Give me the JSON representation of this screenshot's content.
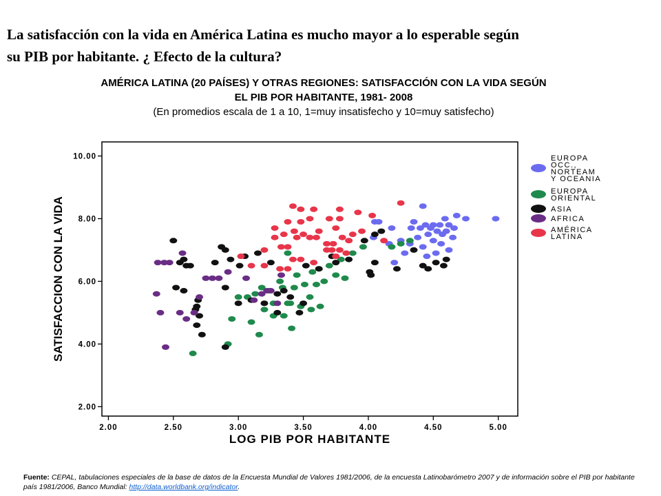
{
  "slide": {
    "title_line1": "La satisfacción con la vida en América Latina es mucho mayor a lo esperable según",
    "title_line2": "su PIB por habitante. ¿ Efecto de la cultura?"
  },
  "chart_heading": {
    "line1": "AMÉRICA LATINA (20 PAÍSES) Y OTRAS REGIONES: SATISFACCIÓN CON LA VIDA SEGÚN",
    "line2": "EL PIB POR HABITANTE, 1981- 2008",
    "line3": "(En promedios escala de 1 a 10, 1=muy insatisfecho y 10=muy satisfecho)"
  },
  "footer": {
    "label": "Fuente:",
    "text": " CEPAL, tabulaciones especiales de la base de datos de la Encuesta Mundial de Valores 1981/2006, de la encuesta Latinobarómetro 2007 y de información sobre el PIB por habitante país 1981/2006, Banco Mundial: ",
    "link": "http://data.worldbank.org/indicator",
    "end": "."
  },
  "chart_data": {
    "type": "scatter",
    "xlabel": "LOG PIB POR HABITANTE",
    "ylabel": "SATISFACCION CON LA VIDA",
    "xlim": [
      1.95,
      5.15
    ],
    "ylim": [
      1.7,
      10.45
    ],
    "x_ticks": [
      "2.00",
      "2.50",
      "3.00",
      "3.50",
      "4.00",
      "4.50",
      "5.00"
    ],
    "y_ticks": [
      "2.00",
      "4.00",
      "6.00",
      "8.00",
      "10.00"
    ],
    "legend_position": "right",
    "series": [
      {
        "name": [
          "EUROPA",
          "OCC.,",
          "NORTEAM",
          "Y OCEANIA"
        ],
        "color": "#6b6bf0",
        "points": [
          [
            4.42,
            8.4
          ],
          [
            4.59,
            8.0
          ],
          [
            4.68,
            8.1
          ],
          [
            4.75,
            8.0
          ],
          [
            4.98,
            8.0
          ],
          [
            4.35,
            7.9
          ],
          [
            4.44,
            7.8
          ],
          [
            4.5,
            7.8
          ],
          [
            4.55,
            7.8
          ],
          [
            4.62,
            7.8
          ],
          [
            4.66,
            7.7
          ],
          [
            4.33,
            7.7
          ],
          [
            4.4,
            7.7
          ],
          [
            4.48,
            7.7
          ],
          [
            4.53,
            7.6
          ],
          [
            4.6,
            7.6
          ],
          [
            4.46,
            7.5
          ],
          [
            4.57,
            7.5
          ],
          [
            4.65,
            7.4
          ],
          [
            4.38,
            7.4
          ],
          [
            4.5,
            7.3
          ],
          [
            4.56,
            7.2
          ],
          [
            4.32,
            7.2
          ],
          [
            4.25,
            7.3
          ],
          [
            4.42,
            7.1
          ],
          [
            4.62,
            7.0
          ],
          [
            4.52,
            6.9
          ],
          [
            4.28,
            6.9
          ],
          [
            4.45,
            6.8
          ],
          [
            4.18,
            7.7
          ],
          [
            4.16,
            7.2
          ],
          [
            4.2,
            6.6
          ],
          [
            4.05,
            7.9
          ],
          [
            4.08,
            7.9
          ],
          [
            4.04,
            7.4
          ]
        ]
      },
      {
        "name": [
          "EUROPA",
          "ORIENTAL"
        ],
        "color": "#1f8a4c",
        "points": [
          [
            2.65,
            3.7
          ],
          [
            2.92,
            4.0
          ],
          [
            2.95,
            4.8
          ],
          [
            3.1,
            4.7
          ],
          [
            3.16,
            4.3
          ],
          [
            3.27,
            4.9
          ],
          [
            3.35,
            4.9
          ],
          [
            3.41,
            4.5
          ],
          [
            3.2,
            5.1
          ],
          [
            3.27,
            5.3
          ],
          [
            3.38,
            5.3
          ],
          [
            3.48,
            5.2
          ],
          [
            3.56,
            5.1
          ],
          [
            3.63,
            5.2
          ],
          [
            3.0,
            5.5
          ],
          [
            3.07,
            5.5
          ],
          [
            3.13,
            5.6
          ],
          [
            3.24,
            5.7
          ],
          [
            3.34,
            5.8
          ],
          [
            3.43,
            5.8
          ],
          [
            3.51,
            5.9
          ],
          [
            3.6,
            5.9
          ],
          [
            3.18,
            5.8
          ],
          [
            3.32,
            6.0
          ],
          [
            3.45,
            6.2
          ],
          [
            3.57,
            6.3
          ],
          [
            3.66,
            6.0
          ],
          [
            3.75,
            6.2
          ],
          [
            3.82,
            6.1
          ],
          [
            3.7,
            6.5
          ],
          [
            3.79,
            6.7
          ],
          [
            3.88,
            6.9
          ],
          [
            3.96,
            7.1
          ],
          [
            4.18,
            7.1
          ],
          [
            4.25,
            7.2
          ],
          [
            4.32,
            7.3
          ],
          [
            3.38,
            6.9
          ],
          [
            3.62,
            6.4
          ],
          [
            3.4,
            5.3
          ],
          [
            3.55,
            5.5
          ]
        ]
      },
      {
        "name": [
          "ASIA"
        ],
        "color": "#111111",
        "points": [
          [
            2.5,
            7.3
          ],
          [
            2.58,
            6.7
          ],
          [
            2.6,
            6.5
          ],
          [
            2.63,
            6.5
          ],
          [
            2.55,
            6.6
          ],
          [
            2.82,
            6.6
          ],
          [
            2.87,
            7.1
          ],
          [
            2.9,
            7.0
          ],
          [
            2.94,
            6.7
          ],
          [
            3.01,
            6.5
          ],
          [
            3.05,
            6.8
          ],
          [
            2.52,
            5.8
          ],
          [
            2.58,
            5.7
          ],
          [
            2.68,
            5.2
          ],
          [
            2.7,
            4.9
          ],
          [
            2.72,
            4.3
          ],
          [
            2.68,
            4.6
          ],
          [
            2.67,
            5.1
          ],
          [
            2.69,
            5.4
          ],
          [
            2.9,
            5.8
          ],
          [
            3.0,
            5.3
          ],
          [
            3.1,
            5.4
          ],
          [
            3.2,
            5.3
          ],
          [
            3.3,
            5.0
          ],
          [
            3.3,
            5.6
          ],
          [
            3.35,
            5.7
          ],
          [
            3.4,
            5.5
          ],
          [
            3.47,
            5.0
          ],
          [
            3.5,
            5.3
          ],
          [
            3.52,
            6.5
          ],
          [
            3.62,
            6.4
          ],
          [
            3.72,
            6.8
          ],
          [
            3.75,
            6.6
          ],
          [
            3.85,
            6.7
          ],
          [
            3.97,
            7.3
          ],
          [
            4.02,
            6.2
          ],
          [
            4.05,
            6.6
          ],
          [
            4.01,
            6.3
          ],
          [
            4.22,
            6.4
          ],
          [
            4.42,
            6.5
          ],
          [
            4.46,
            6.4
          ],
          [
            4.52,
            6.6
          ],
          [
            4.58,
            6.5
          ],
          [
            4.6,
            6.7
          ],
          [
            4.35,
            7.0
          ],
          [
            4.05,
            7.5
          ],
          [
            4.1,
            7.6
          ],
          [
            2.9,
            3.9
          ],
          [
            3.15,
            6.9
          ],
          [
            3.25,
            6.6
          ]
        ]
      },
      {
        "name": [
          "AFRICA"
        ],
        "color": "#6a2d85",
        "points": [
          [
            2.37,
            5.6
          ],
          [
            2.4,
            5.0
          ],
          [
            2.38,
            6.6
          ],
          [
            2.43,
            6.6
          ],
          [
            2.47,
            6.6
          ],
          [
            2.44,
            3.9
          ],
          [
            2.55,
            5.0
          ],
          [
            2.57,
            6.9
          ],
          [
            2.6,
            4.8
          ],
          [
            2.66,
            5.0
          ],
          [
            2.7,
            5.5
          ],
          [
            2.75,
            6.1
          ],
          [
            2.8,
            6.1
          ],
          [
            2.85,
            6.1
          ],
          [
            2.92,
            6.3
          ],
          [
            3.06,
            6.1
          ],
          [
            3.12,
            5.4
          ],
          [
            3.18,
            5.6
          ],
          [
            3.22,
            5.7
          ],
          [
            3.25,
            5.7
          ],
          [
            3.3,
            5.3
          ],
          [
            3.33,
            6.2
          ]
        ]
      },
      {
        "name": [
          "AMÉRICA",
          "LATINA"
        ],
        "color": "#e8354a",
        "points": [
          [
            3.42,
            8.4
          ],
          [
            3.48,
            8.3
          ],
          [
            3.58,
            8.3
          ],
          [
            3.78,
            8.3
          ],
          [
            3.92,
            8.2
          ],
          [
            4.03,
            8.1
          ],
          [
            4.25,
            8.5
          ],
          [
            3.38,
            7.9
          ],
          [
            3.48,
            7.9
          ],
          [
            3.55,
            8.0
          ],
          [
            3.7,
            8.0
          ],
          [
            3.78,
            8.0
          ],
          [
            3.35,
            7.5
          ],
          [
            3.43,
            7.6
          ],
          [
            3.5,
            7.5
          ],
          [
            3.62,
            7.6
          ],
          [
            3.75,
            7.7
          ],
          [
            3.88,
            7.5
          ],
          [
            3.95,
            7.6
          ],
          [
            3.2,
            7.0
          ],
          [
            3.28,
            7.4
          ],
          [
            3.33,
            7.1
          ],
          [
            3.38,
            7.1
          ],
          [
            3.45,
            7.4
          ],
          [
            3.55,
            7.4
          ],
          [
            3.6,
            7.4
          ],
          [
            3.68,
            7.2
          ],
          [
            3.73,
            7.2
          ],
          [
            3.8,
            7.4
          ],
          [
            3.85,
            7.3
          ],
          [
            3.68,
            7.0
          ],
          [
            3.72,
            7.0
          ],
          [
            3.78,
            7.0
          ],
          [
            3.83,
            6.9
          ],
          [
            3.02,
            6.8
          ],
          [
            3.1,
            6.5
          ],
          [
            3.2,
            6.5
          ],
          [
            3.32,
            6.4
          ],
          [
            3.38,
            6.4
          ],
          [
            3.42,
            6.7
          ],
          [
            3.48,
            6.7
          ],
          [
            3.58,
            6.6
          ],
          [
            3.75,
            6.8
          ],
          [
            4.12,
            7.3
          ],
          [
            3.28,
            7.7
          ]
        ]
      }
    ]
  }
}
